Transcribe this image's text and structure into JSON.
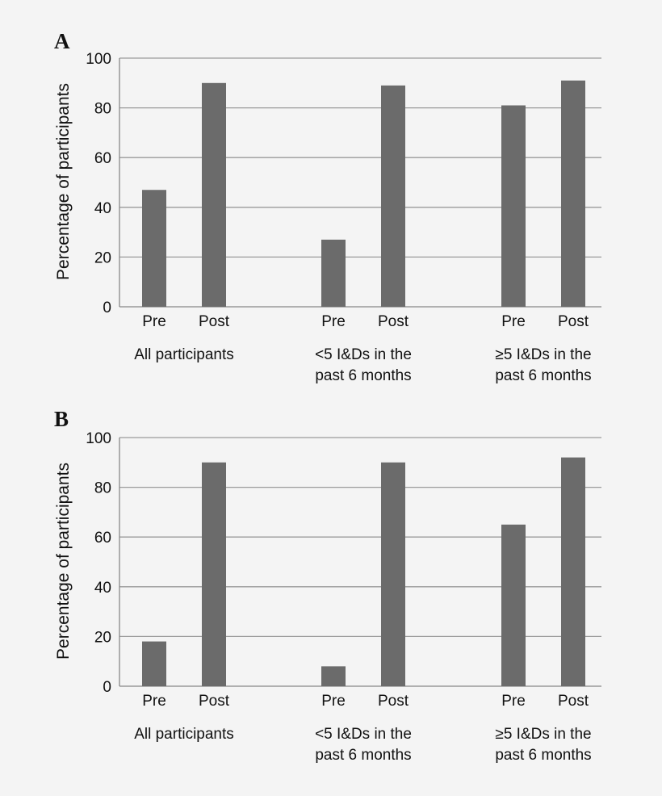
{
  "colors": {
    "bar": "#6b6b6b",
    "background": "#f4f4f4",
    "grid": "#9a9a9a"
  },
  "chart_data": [
    {
      "type": "bar",
      "panel": "A",
      "ylabel": "Percentage of participants",
      "ylim": [
        0,
        100
      ],
      "yticks": [
        0,
        20,
        40,
        60,
        80,
        100
      ],
      "grid": true,
      "groups": [
        {
          "label_lines": [
            "All participants"
          ],
          "bars": [
            {
              "label": "Pre",
              "value": 47
            },
            {
              "label": "Post",
              "value": 90
            }
          ]
        },
        {
          "label_lines": [
            "<5 I&Ds in the",
            "past 6 months"
          ],
          "bars": [
            {
              "label": "Pre",
              "value": 27
            },
            {
              "label": "Post",
              "value": 89
            }
          ]
        },
        {
          "label_lines": [
            "≥5 I&Ds in the",
            "past 6 months"
          ],
          "bars": [
            {
              "label": "Pre",
              "value": 81
            },
            {
              "label": "Post",
              "value": 91
            }
          ]
        }
      ]
    },
    {
      "type": "bar",
      "panel": "B",
      "ylabel": "Percentage of participants",
      "ylim": [
        0,
        100
      ],
      "yticks": [
        0,
        20,
        40,
        60,
        80,
        100
      ],
      "grid": true,
      "groups": [
        {
          "label_lines": [
            "All participants"
          ],
          "bars": [
            {
              "label": "Pre",
              "value": 18
            },
            {
              "label": "Post",
              "value": 90
            }
          ]
        },
        {
          "label_lines": [
            "<5 I&Ds in the",
            "past 6 months"
          ],
          "bars": [
            {
              "label": "Pre",
              "value": 8
            },
            {
              "label": "Post",
              "value": 90
            }
          ]
        },
        {
          "label_lines": [
            "≥5 I&Ds in the",
            "past 6 months"
          ],
          "bars": [
            {
              "label": "Pre",
              "value": 65
            },
            {
              "label": "Post",
              "value": 92
            }
          ]
        }
      ]
    }
  ]
}
